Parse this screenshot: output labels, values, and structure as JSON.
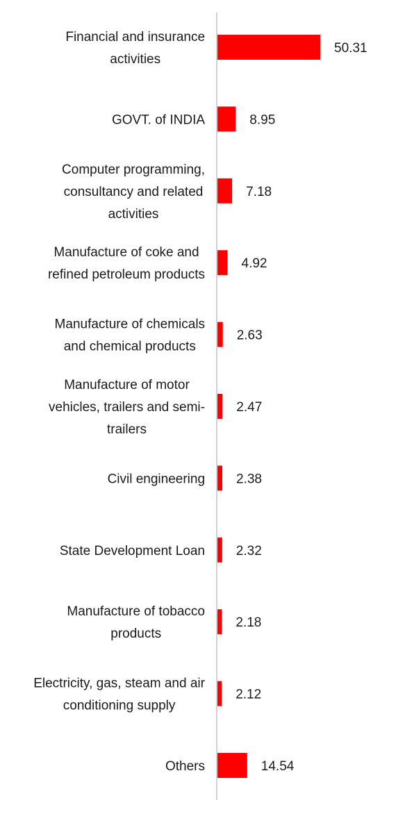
{
  "chart_data": {
    "type": "bar",
    "orientation": "horizontal",
    "categories": [
      "Financial and insurance activities",
      "GOVT. of INDIA",
      "Computer programming, consultancy and related activities",
      "Manufacture of coke and refined petroleum products",
      "Manufacture of chemicals and chemical products",
      "Manufacture of motor vehicles, trailers and semi-trailers",
      "Civil engineering",
      "State Development Loan",
      "Manufacture of tobacco products",
      "Electricity, gas, steam and air conditioning supply",
      "Others"
    ],
    "category_label_lines": [
      [
        "Financial and insurance",
        "activities"
      ],
      [
        "GOVT. of INDIA"
      ],
      [
        "Computer programming,",
        "consultancy and related",
        "activities"
      ],
      [
        "Manufacture of coke and",
        "refined petroleum products"
      ],
      [
        "Manufacture of chemicals",
        "and chemical products"
      ],
      [
        "Manufacture of motor",
        "vehicles, trailers and semi-",
        "trailers"
      ],
      [
        "Civil engineering"
      ],
      [
        "State Development Loan"
      ],
      [
        "Manufacture of tobacco",
        "products"
      ],
      [
        "Electricity, gas, steam and air",
        "conditioning supply"
      ],
      [
        "Others"
      ]
    ],
    "values": [
      50.31,
      8.95,
      7.18,
      4.92,
      2.63,
      2.47,
      2.38,
      2.32,
      2.18,
      2.12,
      14.54
    ],
    "value_labels": [
      "50.31",
      "8.95",
      "7.18",
      "4.92",
      "2.63",
      "2.47",
      "2.38",
      "2.32",
      "2.18",
      "2.12",
      "14.54"
    ],
    "xlim": [
      0,
      50.31
    ],
    "grid": false,
    "legend": "none",
    "bar_color": "#ff0000",
    "axis_color": "#d0d0d0"
  }
}
